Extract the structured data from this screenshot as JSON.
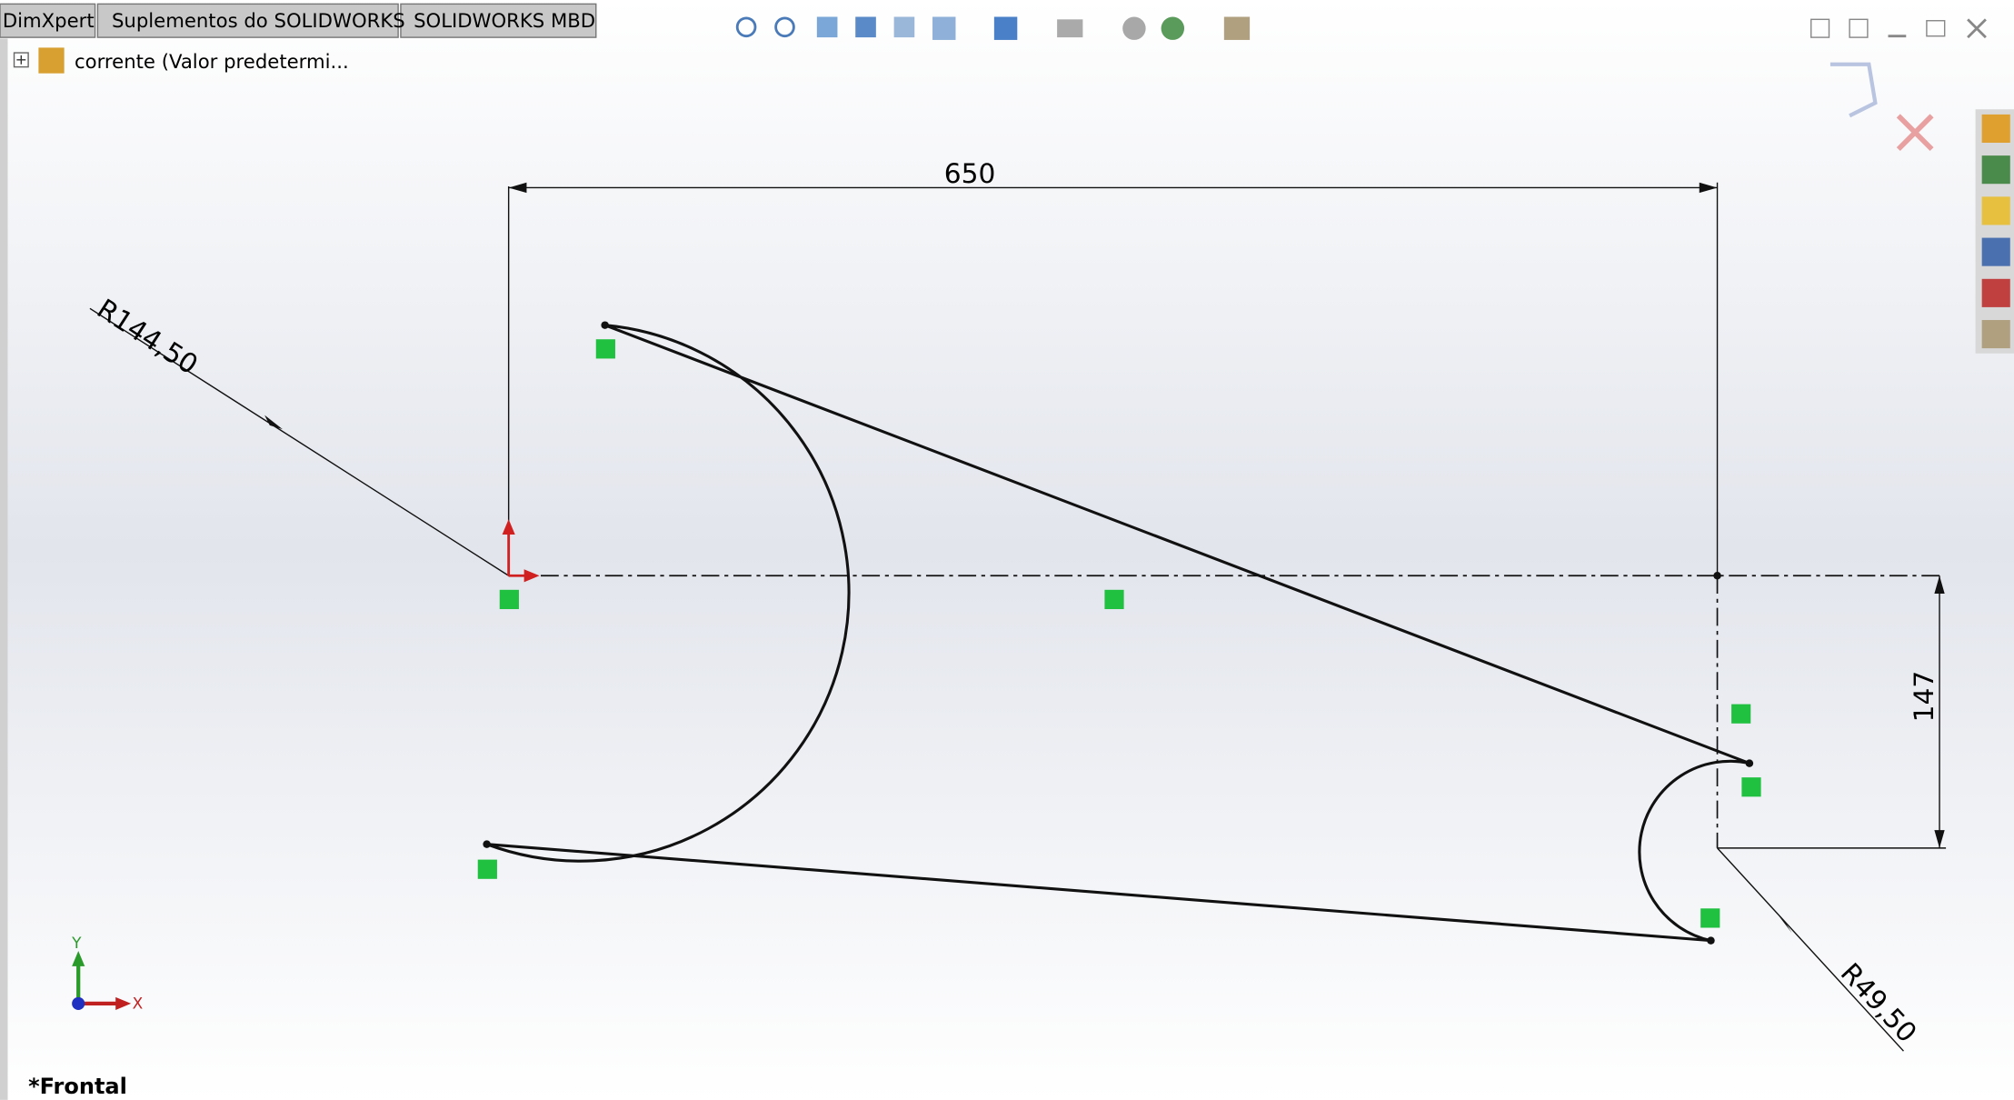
{
  "tabs": [
    "DimXpert",
    "Suplementos do SOLIDWORKS",
    "SOLIDWORKS MBD"
  ],
  "tree": {
    "item": "corrente  (Valor predetermi..."
  },
  "sketch": {
    "dimensions": {
      "horizontal": "650",
      "big_radius": "R144,50",
      "vertical": "147",
      "small_radius": "R49,50"
    }
  },
  "triad": {
    "y": "Y",
    "x": "X"
  },
  "view": {
    "label": "*Frontal"
  }
}
